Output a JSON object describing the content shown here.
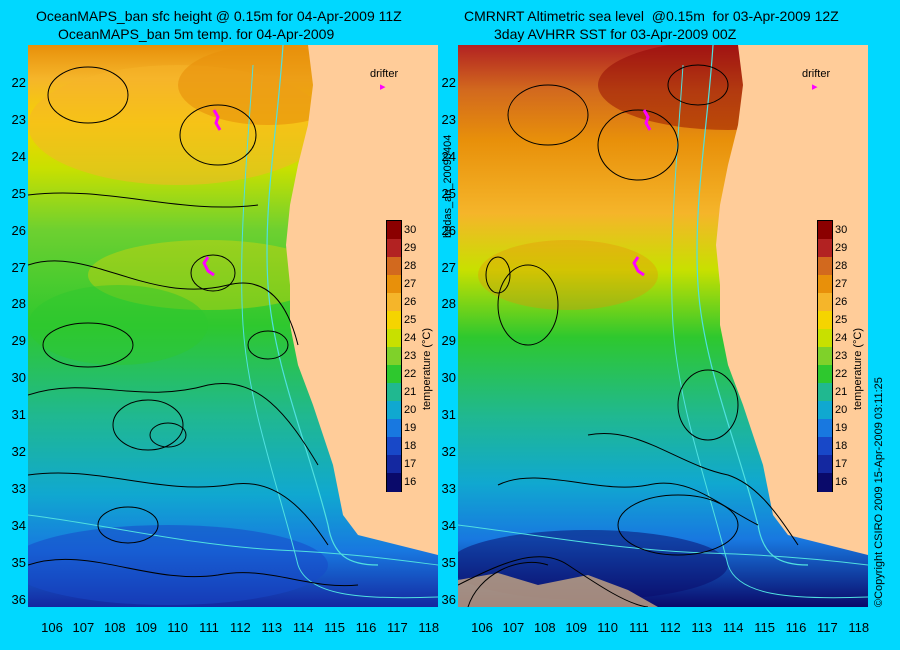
{
  "left_panel": {
    "title_line1": "OceanMAPS_ban sfc height @ 0.15m for 04-Apr-2009 11Z",
    "title_line2": "OceanMAPS_ban 5m temp. for 04-Apr-2009"
  },
  "right_panel": {
    "title_line1": "CMRNRT Altimetric sea level  @0.15m  for 03-Apr-2009 12Z",
    "title_line2": "3day AVHRR SST for 03-Apr-2009 00Z"
  },
  "lat_labels": [
    "22",
    "23",
    "24",
    "25",
    "26",
    "27",
    "28",
    "29",
    "30",
    "31",
    "32",
    "33",
    "34",
    "35",
    "36"
  ],
  "lon_labels": [
    "106",
    "107",
    "108",
    "109",
    "110",
    "111",
    "112",
    "113",
    "114",
    "115",
    "116",
    "117",
    "118"
  ],
  "colorbar": {
    "title": "temperature (°C)",
    "ticks": [
      "30",
      "29",
      "28",
      "27",
      "26",
      "25",
      "24",
      "23",
      "22",
      "21",
      "20",
      "19",
      "18",
      "17",
      "16"
    ],
    "colors": [
      "#8b0000",
      "#b22222",
      "#d2691e",
      "#e8900a",
      "#f5b52a",
      "#f5d400",
      "#c8e000",
      "#7fd12a",
      "#2ec82e",
      "#20b890",
      "#10a8d0",
      "#1878e0",
      "#1848c8",
      "#1428a0",
      "#0a0a6a"
    ]
  },
  "legend": {
    "drifter": "drifter"
  },
  "side_text": {
    "middle": "bodas_an_20090404",
    "right": "©Copyright CSIRO 2009    15-Apr-2009 03:11:25"
  },
  "colors": {
    "background": "#00d8ff",
    "land": "#ffcc99",
    "shelf_contour": "#50e0e0",
    "drifter": "#ff00ff"
  }
}
